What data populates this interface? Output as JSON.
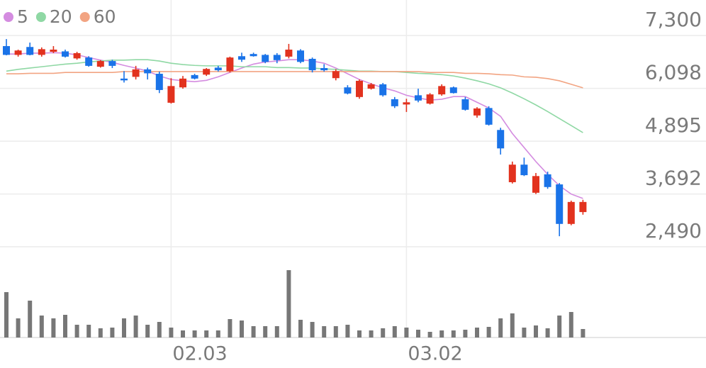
{
  "chart_data": {
    "type": "candlestick",
    "categories": [
      null,
      null,
      null,
      null,
      null,
      null,
      null,
      null,
      null,
      null,
      null,
      null,
      null,
      null,
      "02.03",
      null,
      null,
      null,
      null,
      null,
      null,
      null,
      null,
      null,
      null,
      null,
      null,
      null,
      null,
      null,
      null,
      null,
      null,
      null,
      "03.02",
      null,
      null,
      null,
      null,
      null,
      null,
      null,
      null,
      null,
      null,
      null,
      null,
      null,
      null,
      null
    ],
    "open": [
      7060,
      6860,
      7040,
      6860,
      6930,
      6940,
      6780,
      6800,
      6590,
      6720,
      6320,
      6360,
      6530,
      6430,
      5770,
      6120,
      6400,
      6410,
      6570,
      6490,
      6830,
      6880,
      6860,
      6860,
      6820,
      6960,
      6770,
      6560,
      6330,
      6120,
      5900,
      6090,
      6190,
      5850,
      5730,
      5940,
      5750,
      5960,
      6120,
      5850,
      5480,
      5650,
      5150,
      3960,
      4360,
      3720,
      4140,
      3910,
      3010,
      3280
    ],
    "high": [
      7220,
      6980,
      7140,
      7030,
      7060,
      6980,
      6930,
      6830,
      6740,
      6750,
      6490,
      6610,
      6570,
      6480,
      6330,
      6380,
      6430,
      6560,
      6610,
      6820,
      6910,
      6910,
      6880,
      6900,
      7110,
      6990,
      6800,
      6650,
      6530,
      6170,
      6300,
      6220,
      6220,
      5900,
      5860,
      6090,
      5990,
      6190,
      6140,
      5900,
      5670,
      5690,
      5200,
      4430,
      4520,
      4170,
      4200,
      3940,
      3540,
      3560
    ],
    "low": [
      6850,
      6820,
      6850,
      6820,
      6900,
      6800,
      6750,
      6590,
      6570,
      6560,
      6230,
      6300,
      6300,
      5990,
      5750,
      6090,
      6300,
      6380,
      6480,
      6460,
      6700,
      6820,
      6670,
      6670,
      6780,
      6670,
      6460,
      6480,
      6280,
      5960,
      5860,
      6070,
      5910,
      5650,
      5560,
      5780,
      5730,
      5930,
      5980,
      5590,
      5430,
      5250,
      4590,
      3930,
      4100,
      3690,
      3810,
      2730,
      2980,
      3220
    ],
    "close": [
      6860,
      6960,
      6860,
      6990,
      6980,
      6820,
      6900,
      6610,
      6720,
      6610,
      6280,
      6530,
      6440,
      6060,
      6150,
      6320,
      6320,
      6540,
      6510,
      6800,
      6750,
      6830,
      6700,
      6740,
      6980,
      6700,
      6510,
      6510,
      6490,
      5980,
      6270,
      6190,
      5940,
      5690,
      5780,
      5820,
      5960,
      6150,
      5990,
      5610,
      5640,
      5270,
      4730,
      4360,
      4120,
      4100,
      3850,
      3010,
      3510,
      3510
    ],
    "volume": [
      64,
      27,
      52,
      31,
      27,
      32,
      18,
      18,
      13,
      14,
      27,
      31,
      18,
      22,
      14,
      10,
      10,
      10,
      10,
      26,
      24,
      16,
      16,
      16,
      95,
      25,
      22,
      16,
      16,
      18,
      10,
      10,
      13,
      16,
      14,
      11,
      8,
      10,
      10,
      11,
      14,
      15,
      27,
      34,
      14,
      17,
      13,
      31,
      36,
      12
    ],
    "up_color": "#e2321e",
    "down_color": "#1a73e8",
    "volume_color": "#777777",
    "series": [
      {
        "name": "5",
        "color": "#d48ce0",
        "values": [
          6880,
          6880,
          6900,
          6900,
          6910,
          6900,
          6860,
          6800,
          6740,
          6690,
          6620,
          6560,
          6490,
          6380,
          6300,
          6270,
          6250,
          6280,
          6360,
          6460,
          6560,
          6650,
          6700,
          6720,
          6750,
          6750,
          6720,
          6670,
          6560,
          6430,
          6300,
          6200,
          6110,
          6040,
          5940,
          5880,
          5830,
          5850,
          5910,
          5910,
          5780,
          5650,
          5460,
          5070,
          4750,
          4430,
          4140,
          3880,
          3690,
          3590
        ]
      },
      {
        "name": "20",
        "color": "#8fd8a4",
        "values": [
          6490,
          6530,
          6560,
          6590,
          6620,
          6650,
          6670,
          6700,
          6720,
          6740,
          6740,
          6750,
          6750,
          6720,
          6670,
          6640,
          6620,
          6610,
          6610,
          6610,
          6590,
          6590,
          6590,
          6570,
          6570,
          6560,
          6560,
          6540,
          6530,
          6510,
          6490,
          6490,
          6480,
          6480,
          6460,
          6440,
          6430,
          6410,
          6380,
          6330,
          6270,
          6200,
          6110,
          5990,
          5860,
          5720,
          5570,
          5410,
          5250,
          5090
        ]
      },
      {
        "name": "60",
        "color": "#f2a482",
        "values": [
          6430,
          6430,
          6440,
          6440,
          6440,
          6460,
          6460,
          6460,
          6460,
          6460,
          6480,
          6480,
          6480,
          6480,
          6480,
          6480,
          6480,
          6480,
          6480,
          6480,
          6480,
          6480,
          6480,
          6480,
          6480,
          6480,
          6480,
          6480,
          6480,
          6480,
          6480,
          6480,
          6480,
          6480,
          6480,
          6480,
          6460,
          6460,
          6460,
          6440,
          6440,
          6430,
          6410,
          6400,
          6360,
          6350,
          6320,
          6270,
          6190,
          6110
        ]
      }
    ],
    "ylim": [
      2490,
      8110
    ],
    "yticks": [
      {
        "value": 7300,
        "label": "7,300"
      },
      {
        "value": 6098,
        "label": "6,098"
      },
      {
        "value": 4895,
        "label": "4,895"
      },
      {
        "value": 3692,
        "label": "3,692"
      },
      {
        "value": 2490,
        "label": "2,490"
      }
    ],
    "vlim": [
      0,
      100
    ],
    "grid": true
  }
}
